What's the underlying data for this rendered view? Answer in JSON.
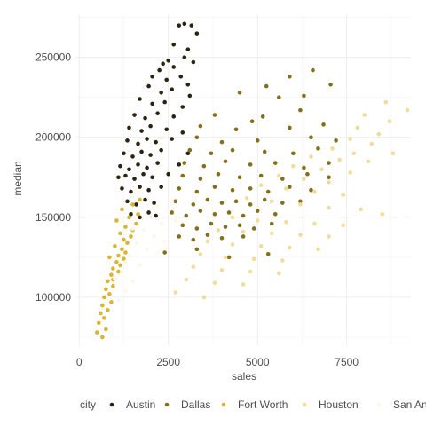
{
  "chart_data": {
    "type": "scatter",
    "xlabel": "sales",
    "ylabel": "median",
    "xlim": [
      -80,
      9300
    ],
    "ylim": [
      70000,
      277000
    ],
    "x_ticks": [
      0,
      2500,
      5000,
      7500
    ],
    "x_tick_labels": [
      "0",
      "2500",
      "5000",
      "7500"
    ],
    "y_ticks": [
      100000,
      150000,
      200000,
      250000
    ],
    "y_tick_labels": [
      "100000",
      "150000",
      "200000",
      "250000"
    ],
    "grid": true,
    "legend": {
      "title": "city",
      "position": "bottom"
    },
    "series": [
      {
        "name": "Austin",
        "color": "#2b2410",
        "points": [
          [
            2800,
            270000
          ],
          [
            2950,
            271000
          ],
          [
            3150,
            270000
          ],
          [
            3300,
            265000
          ],
          [
            2650,
            258000
          ],
          [
            3050,
            255000
          ],
          [
            2500,
            248000
          ],
          [
            2950,
            250000
          ],
          [
            2350,
            246000
          ],
          [
            2250,
            242000
          ],
          [
            2650,
            244000
          ],
          [
            3200,
            247000
          ],
          [
            2050,
            238000
          ],
          [
            2450,
            236000
          ],
          [
            2850,
            238000
          ],
          [
            3050,
            233000
          ],
          [
            1950,
            232000
          ],
          [
            2300,
            228000
          ],
          [
            2600,
            230000
          ],
          [
            3100,
            226000
          ],
          [
            1700,
            224000
          ],
          [
            2050,
            221000
          ],
          [
            2400,
            222000
          ],
          [
            2900,
            219000
          ],
          [
            1550,
            214000
          ],
          [
            1850,
            212000
          ],
          [
            2200,
            215000
          ],
          [
            2650,
            213000
          ],
          [
            1400,
            206000
          ],
          [
            1750,
            204000
          ],
          [
            2000,
            207000
          ],
          [
            2450,
            205000
          ],
          [
            2900,
            203000
          ],
          [
            1350,
            198000
          ],
          [
            1650,
            196000
          ],
          [
            1900,
            199000
          ],
          [
            2150,
            197000
          ],
          [
            2600,
            199000
          ],
          [
            1250,
            190000
          ],
          [
            1500,
            188000
          ],
          [
            1750,
            191000
          ],
          [
            2000,
            189000
          ],
          [
            2300,
            192000
          ],
          [
            3050,
            190000
          ],
          [
            1150,
            182000
          ],
          [
            1400,
            180000
          ],
          [
            1650,
            183000
          ],
          [
            1900,
            181000
          ],
          [
            2200,
            184000
          ],
          [
            2800,
            183000
          ],
          [
            1100,
            175000
          ],
          [
            1300,
            176000
          ],
          [
            1550,
            174000
          ],
          [
            1800,
            177000
          ],
          [
            2050,
            175000
          ],
          [
            2500,
            177000
          ],
          [
            1200,
            168000
          ],
          [
            1450,
            166000
          ],
          [
            1700,
            169000
          ],
          [
            1950,
            167000
          ],
          [
            2300,
            169000
          ],
          [
            1350,
            160000
          ],
          [
            1600,
            158000
          ],
          [
            1850,
            161000
          ],
          [
            2100,
            159000
          ],
          [
            1450,
            152000
          ],
          [
            1700,
            150000
          ],
          [
            1950,
            153000
          ],
          [
            2150,
            151000
          ]
        ]
      },
      {
        "name": "Dallas",
        "color": "#83701a",
        "points": [
          [
            6550,
            242000
          ],
          [
            5900,
            238000
          ],
          [
            7050,
            233000
          ],
          [
            5250,
            232000
          ],
          [
            4500,
            228000
          ],
          [
            6300,
            226000
          ],
          [
            5600,
            225000
          ],
          [
            3800,
            214000
          ],
          [
            5150,
            213000
          ],
          [
            6200,
            217000
          ],
          [
            4850,
            210000
          ],
          [
            3400,
            207000
          ],
          [
            4400,
            205000
          ],
          [
            5900,
            206000
          ],
          [
            6850,
            208000
          ],
          [
            3300,
            200000
          ],
          [
            4000,
            197000
          ],
          [
            5000,
            198000
          ],
          [
            6500,
            200000
          ],
          [
            7200,
            198000
          ],
          [
            3100,
            192000
          ],
          [
            3700,
            190000
          ],
          [
            4300,
            192000
          ],
          [
            5200,
            191000
          ],
          [
            6000,
            190000
          ],
          [
            6700,
            193000
          ],
          [
            2950,
            184000
          ],
          [
            3500,
            182000
          ],
          [
            4100,
            185000
          ],
          [
            4800,
            183000
          ],
          [
            5500,
            184000
          ],
          [
            6300,
            181000
          ],
          [
            7000,
            184000
          ],
          [
            2900,
            176000
          ],
          [
            3400,
            174000
          ],
          [
            3900,
            177000
          ],
          [
            4500,
            175000
          ],
          [
            5100,
            176000
          ],
          [
            5700,
            174000
          ],
          [
            6400,
            177000
          ],
          [
            7000,
            175000
          ],
          [
            2800,
            168000
          ],
          [
            3300,
            166000
          ],
          [
            3800,
            169000
          ],
          [
            4300,
            167000
          ],
          [
            4800,
            168000
          ],
          [
            5300,
            166000
          ],
          [
            5900,
            169000
          ],
          [
            6500,
            167000
          ],
          [
            2700,
            160000
          ],
          [
            3200,
            158000
          ],
          [
            3600,
            161000
          ],
          [
            4000,
            159000
          ],
          [
            4400,
            160000
          ],
          [
            4800,
            158000
          ],
          [
            5200,
            161000
          ],
          [
            5700,
            159000
          ],
          [
            6200,
            160000
          ],
          [
            2600,
            153000
          ],
          [
            3000,
            151000
          ],
          [
            3400,
            154000
          ],
          [
            3800,
            152000
          ],
          [
            4200,
            153000
          ],
          [
            4600,
            151000
          ],
          [
            5000,
            154000
          ],
          [
            5500,
            152000
          ],
          [
            2900,
            145000
          ],
          [
            3300,
            143000
          ],
          [
            3700,
            146000
          ],
          [
            4100,
            144000
          ],
          [
            4500,
            145000
          ],
          [
            4900,
            143000
          ],
          [
            5400,
            146000
          ],
          [
            2800,
            138000
          ],
          [
            3200,
            136000
          ],
          [
            3600,
            139000
          ],
          [
            4000,
            137000
          ],
          [
            4600,
            138000
          ],
          [
            2400,
            128000
          ],
          [
            3300,
            130000
          ],
          [
            4200,
            125000
          ],
          [
            5300,
            127000
          ]
        ]
      },
      {
        "name": "Fort Worth",
        "color": "#d9b533",
        "points": [
          [
            500,
            78000
          ],
          [
            650,
            75000
          ],
          [
            750,
            80000
          ],
          [
            550,
            84000
          ],
          [
            700,
            87000
          ],
          [
            600,
            90000
          ],
          [
            800,
            92000
          ],
          [
            650,
            95000
          ],
          [
            900,
            97000
          ],
          [
            700,
            100000
          ],
          [
            850,
            102000
          ],
          [
            750,
            105000
          ],
          [
            950,
            107000
          ],
          [
            800,
            110000
          ],
          [
            1000,
            112000
          ],
          [
            900,
            114000
          ],
          [
            1100,
            116000
          ],
          [
            950,
            118000
          ],
          [
            1150,
            120000
          ],
          [
            1050,
            122000
          ],
          [
            1250,
            124000
          ],
          [
            1100,
            126000
          ],
          [
            1300,
            128000
          ],
          [
            1200,
            130000
          ],
          [
            1000,
            132000
          ],
          [
            1350,
            134000
          ],
          [
            1250,
            136000
          ],
          [
            1450,
            138000
          ],
          [
            1150,
            140000
          ],
          [
            1500,
            142000
          ],
          [
            1300,
            144000
          ],
          [
            1600,
            146000
          ],
          [
            1050,
            148000
          ],
          [
            1400,
            150000
          ],
          [
            1650,
            152000
          ],
          [
            1200,
            155000
          ],
          [
            1500,
            158000
          ],
          [
            1700,
            161000
          ],
          [
            850,
            125000
          ],
          [
            950,
            111000
          ]
        ]
      },
      {
        "name": "Houston",
        "color": "#f1dd9a",
        "points": [
          [
            8600,
            222000
          ],
          [
            9200,
            217000
          ],
          [
            8000,
            214000
          ],
          [
            8700,
            210000
          ],
          [
            7800,
            206000
          ],
          [
            8400,
            202000
          ],
          [
            7600,
            199000
          ],
          [
            8200,
            196000
          ],
          [
            7100,
            193000
          ],
          [
            7700,
            190000
          ],
          [
            6500,
            188000
          ],
          [
            7300,
            186000
          ],
          [
            8100,
            185000
          ],
          [
            6000,
            182000
          ],
          [
            6800,
            180000
          ],
          [
            7600,
            178000
          ],
          [
            5600,
            176000
          ],
          [
            6300,
            174000
          ],
          [
            7000,
            172000
          ],
          [
            5100,
            170000
          ],
          [
            5800,
            168000
          ],
          [
            6600,
            166000
          ],
          [
            7400,
            164000
          ],
          [
            4700,
            162000
          ],
          [
            5400,
            160000
          ],
          [
            6200,
            158000
          ],
          [
            7000,
            156000
          ],
          [
            7900,
            155000
          ],
          [
            8500,
            152000
          ],
          [
            4300,
            150000
          ],
          [
            5000,
            148000
          ],
          [
            5800,
            147000
          ],
          [
            6600,
            146000
          ],
          [
            7400,
            145000
          ],
          [
            3900,
            142000
          ],
          [
            4600,
            141000
          ],
          [
            5400,
            140000
          ],
          [
            6200,
            139000
          ],
          [
            7000,
            138000
          ],
          [
            3600,
            135000
          ],
          [
            4300,
            133000
          ],
          [
            5100,
            132000
          ],
          [
            5900,
            131000
          ],
          [
            6700,
            130000
          ],
          [
            3400,
            127000
          ],
          [
            4100,
            125000
          ],
          [
            4900,
            124000
          ],
          [
            5700,
            123000
          ],
          [
            3200,
            119000
          ],
          [
            4000,
            117000
          ],
          [
            4800,
            116000
          ],
          [
            5600,
            115000
          ],
          [
            3000,
            111000
          ],
          [
            3800,
            109000
          ],
          [
            4600,
            108000
          ],
          [
            2700,
            103000
          ],
          [
            3500,
            100000
          ],
          [
            8800,
            190000
          ]
        ]
      },
      {
        "name": "San Antonio",
        "color": "#fdf8e6",
        "points": [
          [
            1100,
            98000
          ],
          [
            1300,
            104000
          ],
          [
            1500,
            110000
          ],
          [
            1200,
            116000
          ],
          [
            1700,
            120000
          ],
          [
            1400,
            126000
          ],
          [
            1900,
            130000
          ],
          [
            1600,
            134000
          ],
          [
            2100,
            138000
          ],
          [
            1800,
            142000
          ],
          [
            2300,
            146000
          ],
          [
            2000,
            150000
          ],
          [
            2500,
            153000
          ],
          [
            2200,
            157000
          ],
          [
            1500,
            143000
          ],
          [
            2700,
            148000
          ],
          [
            2400,
            135000
          ],
          [
            1300,
            122000
          ],
          [
            1000,
            112000
          ],
          [
            2600,
            160000
          ]
        ]
      }
    ]
  }
}
